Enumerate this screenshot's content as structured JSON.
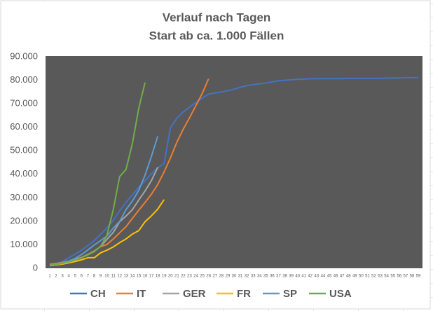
{
  "chart_data": {
    "type": "line",
    "title": "Verlauf nach Tagen",
    "subtitle": "Start ab ca. 1.000 Fällen",
    "categories": [
      "1",
      "2",
      "3",
      "4",
      "5",
      "6",
      "7",
      "8",
      "9",
      "10",
      "11",
      "12",
      "13",
      "14",
      "15",
      "16",
      "17",
      "18",
      "19",
      "20",
      "21",
      "22",
      "23",
      "24",
      "25",
      "26",
      "27",
      "28",
      "29",
      "30",
      "31",
      "32",
      "33",
      "34",
      "35",
      "36",
      "37",
      "38",
      "39",
      "40",
      "41",
      "42",
      "43",
      "44",
      "45",
      "46",
      "47",
      "48",
      "49",
      "50",
      "51",
      "52",
      "53",
      "54",
      "55",
      "56",
      "57",
      "58",
      "59"
    ],
    "series": [
      {
        "name": "CH",
        "color": "#4472c4",
        "values": [
          1300,
          2000,
          2800,
          4500,
          6000,
          7700,
          9700,
          11800,
          14400,
          17200,
          20400,
          24500,
          28000,
          31200,
          34500,
          37200,
          40200,
          42700,
          44600,
          59800,
          63800,
          66500,
          68500,
          70500,
          72400,
          74100,
          74600,
          75000,
          75500,
          76200,
          77000,
          77700,
          78100,
          78500,
          78800,
          79300,
          79800,
          80000,
          80200,
          80400,
          80500,
          80600,
          80700,
          80700,
          80700,
          80700,
          80700,
          80800,
          80800,
          80800,
          80800,
          80800,
          80800,
          80900,
          81000,
          81000,
          81100,
          81100,
          81100
        ]
      },
      {
        "name": "IT",
        "color": "#ed7d31",
        "values": [
          1700,
          2000,
          2500,
          3100,
          3900,
          4600,
          5900,
          7400,
          9200,
          10100,
          12500,
          15100,
          17700,
          21200,
          24700,
          28000,
          31500,
          35700,
          41000,
          47000,
          53600,
          59100,
          64000,
          69200,
          74400,
          80600,
          null,
          null,
          null,
          null,
          null,
          null,
          null,
          null,
          null,
          null,
          null,
          null,
          null,
          null,
          null,
          null,
          null,
          null,
          null,
          null,
          null,
          null,
          null,
          null,
          null,
          null,
          null,
          null,
          null,
          null,
          null,
          null,
          null
        ]
      },
      {
        "name": "GER",
        "color": "#a5a5a5",
        "values": [
          1100,
          1600,
          2000,
          2700,
          3700,
          4600,
          5800,
          7200,
          9300,
          12300,
          15300,
          19800,
          22200,
          24900,
          29000,
          32900,
          37300,
          43000,
          null,
          null,
          null,
          null,
          null,
          null,
          null,
          null,
          null,
          null,
          null,
          null,
          null,
          null,
          null,
          null,
          null,
          null,
          null,
          null,
          null,
          null,
          null,
          null,
          null,
          null,
          null,
          null,
          null,
          null,
          null,
          null,
          null,
          null,
          null,
          null,
          null,
          null,
          null,
          null,
          null
        ]
      },
      {
        "name": "FR",
        "color": "#ffc000",
        "values": [
          1100,
          1400,
          1800,
          2300,
          2900,
          3600,
          4500,
          4500,
          6600,
          7700,
          9100,
          10900,
          12500,
          14500,
          16000,
          19800,
          22300,
          25200,
          29200,
          null,
          null,
          null,
          null,
          null,
          null,
          null,
          null,
          null,
          null,
          null,
          null,
          null,
          null,
          null,
          null,
          null,
          null,
          null,
          null,
          null,
          null,
          null,
          null,
          null,
          null,
          null,
          null,
          null,
          null,
          null,
          null,
          null,
          null,
          null,
          null,
          null,
          null,
          null,
          null
        ]
      },
      {
        "name": "SP",
        "color": "#5b9bd5",
        "values": [
          1200,
          1700,
          2300,
          3100,
          4200,
          5800,
          7800,
          9900,
          11800,
          13700,
          17100,
          19900,
          24900,
          28600,
          33100,
          39600,
          47600,
          56200,
          null,
          null,
          null,
          null,
          null,
          null,
          null,
          null,
          null,
          null,
          null,
          null,
          null,
          null,
          null,
          null,
          null,
          null,
          null,
          null,
          null,
          null,
          null,
          null,
          null,
          null,
          null,
          null,
          null,
          null,
          null,
          null,
          null,
          null,
          null,
          null,
          null,
          null,
          null,
          null,
          null
        ]
      },
      {
        "name": "USA",
        "color": "#70ad47",
        "values": [
          1300,
          1600,
          2100,
          2700,
          3500,
          4500,
          5700,
          7100,
          9400,
          14000,
          25000,
          39000,
          42000,
          53000,
          68000,
          79000,
          null,
          null,
          null,
          null,
          null,
          null,
          null,
          null,
          null,
          null,
          null,
          null,
          null,
          null,
          null,
          null,
          null,
          null,
          null,
          null,
          null,
          null,
          null,
          null,
          null,
          null,
          null,
          null,
          null,
          null,
          null,
          null,
          null,
          null,
          null,
          null,
          null,
          null,
          null,
          null,
          null,
          null,
          null
        ]
      }
    ],
    "ylim": [
      0,
      90000
    ],
    "yticks": [
      0,
      {
        "value": 10000,
        "label": "10.000"
      },
      {
        "value": 20000,
        "label": "20.000"
      },
      {
        "value": 30000,
        "label": "30.000"
      },
      {
        "value": 40000,
        "label": "40.000"
      },
      {
        "value": 50000,
        "label": "50.000"
      },
      {
        "value": 60000,
        "label": "60.000"
      },
      {
        "value": 70000,
        "label": "70.000"
      },
      {
        "value": 80000,
        "label": "80.000"
      },
      {
        "value": 90000,
        "label": "90.000"
      }
    ],
    "grid": false,
    "plot_background": "#595959",
    "legend": "bottom"
  }
}
